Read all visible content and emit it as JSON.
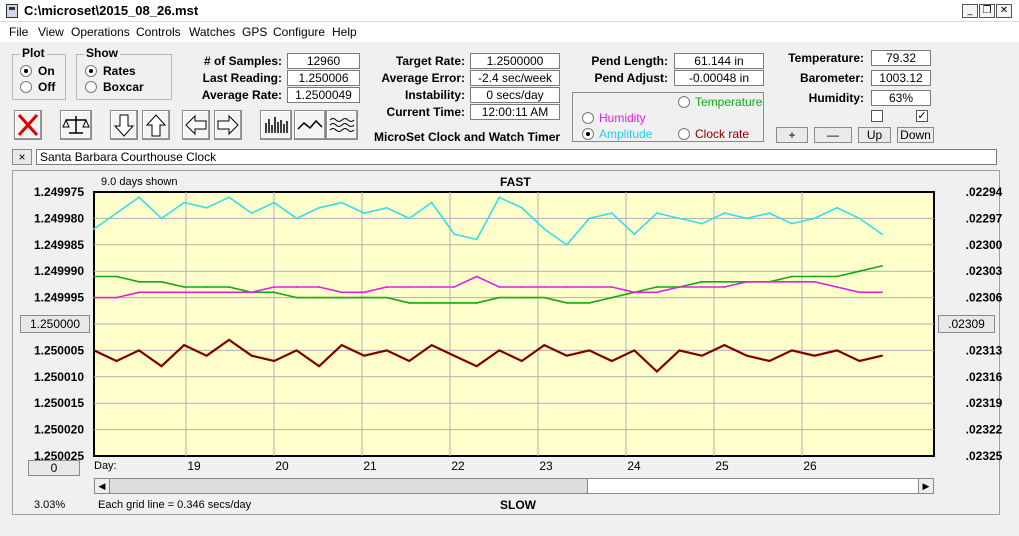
{
  "window": {
    "title": "C:\\microset\\2015_08_26.mst",
    "minimize": "_",
    "restore": "❐",
    "close": "✕"
  },
  "menu": [
    "File",
    "View",
    "Operations",
    "Controls",
    "Watches",
    "GPS",
    "Configure",
    "Help"
  ],
  "plot_group": {
    "title": "Plot",
    "on": "On",
    "off": "Off",
    "selected": "On"
  },
  "show_group": {
    "title": "Show",
    "rates": "Rates",
    "boxcar": "Boxcar",
    "selected": "Rates"
  },
  "stats": {
    "samples_label": "# of Samples:",
    "samples": "12960",
    "last_label": "Last Reading:",
    "last": "1.250006",
    "avg_rate_label": "Average Rate:",
    "avg_rate": "1.2500049",
    "target_label": "Target Rate:",
    "target": "1.2500000",
    "avg_err_label": "Average Error:",
    "avg_err": "-2.4 sec/week",
    "instab_label": "Instability:",
    "instab": "0 secs/day",
    "time_label": "Current Time:",
    "time": "12:00:11 AM",
    "app_caption": "MicroSet Clock and Watch Timer",
    "pend_len_label": "Pend Length:",
    "pend_len": "61.144 in",
    "pend_adj_label": "Pend Adjust:",
    "pend_adj": "-0.00048 in",
    "temp_label": "Temperature:",
    "temp": "79.32",
    "baro_label": "Barometer:",
    "baro": "1003.12",
    "hum_label": "Humidity:",
    "hum": "63%"
  },
  "trace_select": {
    "temperature": "Temperature",
    "humidity": "Humidity",
    "amplitude": "Amplitude",
    "clock_rate": "Clock rate",
    "selected": "Amplitude"
  },
  "scale_buttons": {
    "plus": "+",
    "minus": "—",
    "up": "Up",
    "down": "Down"
  },
  "checkboxes": {
    "left_checked": false,
    "right_checked": true
  },
  "watch": {
    "close": "×",
    "name": "Santa Barbara Courthouse Clock"
  },
  "chart_top_left": "9.0 days shown",
  "chart_fast": "FAST",
  "chart_slow": "SLOW",
  "chart_grid_info": "Each grid line = 0.346 secs/day",
  "chart_percent": "3.03%",
  "chart_left_button": "1.250000",
  "chart_right_button": ".02309",
  "chart_bottom_button": "0",
  "day_label": "Day:",
  "colors": {
    "plot_bg": "#ffffcc",
    "rate": "#800000",
    "amplitude": "#33ddee",
    "temperature": "#11aa11",
    "humidity": "#dd22dd",
    "grid": "#b0b0b0"
  },
  "chart_data": {
    "type": "line",
    "x_axis": {
      "label": "Day:",
      "ticks": [
        "19",
        "20",
        "21",
        "22",
        "23",
        "24",
        "25",
        "26"
      ]
    },
    "y_left_ticks": [
      "1.249975",
      "1.249980",
      "1.249985",
      "1.249990",
      "1.249995",
      "1.250000",
      "1.250005",
      "1.250010",
      "1.250015",
      "1.250020",
      "1.250025"
    ],
    "y_right_ticks": [
      ".02294",
      ".02297",
      ".02300",
      ".02303",
      ".02306",
      ".02309",
      ".02313",
      ".02316",
      ".02319",
      ".02322",
      ".02325"
    ],
    "ylim_left": [
      1.250025,
      1.249975
    ],
    "series": [
      {
        "name": "Clock rate",
        "values": [
          1.250005,
          1.250007,
          1.250005,
          1.250008,
          1.250004,
          1.250006,
          1.250003,
          1.250006,
          1.250007,
          1.250005,
          1.250008,
          1.250004,
          1.250006,
          1.250005,
          1.250007,
          1.250004,
          1.250006,
          1.250008,
          1.250005,
          1.250007,
          1.250004,
          1.250006,
          1.250005,
          1.250007,
          1.250005,
          1.250009,
          1.250005,
          1.250006,
          1.250004,
          1.250006,
          1.250007,
          1.250005,
          1.250006,
          1.250005,
          1.250007,
          1.250006
        ]
      },
      {
        "name": "Amplitude",
        "values": [
          1.249982,
          1.249979,
          1.249976,
          1.24998,
          1.249977,
          1.249978,
          1.249976,
          1.249979,
          1.249977,
          1.24998,
          1.249978,
          1.249977,
          1.249979,
          1.249978,
          1.24998,
          1.249977,
          1.249983,
          1.249984,
          1.249976,
          1.249978,
          1.249982,
          1.249985,
          1.24998,
          1.249979,
          1.249983,
          1.249979,
          1.24998,
          1.249981,
          1.249979,
          1.24998,
          1.249979,
          1.249981,
          1.24998,
          1.249978,
          1.24998,
          1.249983
        ]
      },
      {
        "name": "Temperature",
        "values": [
          1.249991,
          1.249991,
          1.249992,
          1.249992,
          1.249993,
          1.249993,
          1.249993,
          1.249994,
          1.249994,
          1.249995,
          1.249995,
          1.249995,
          1.249995,
          1.249995,
          1.249996,
          1.249996,
          1.249996,
          1.249996,
          1.249995,
          1.249995,
          1.249995,
          1.249996,
          1.249996,
          1.249995,
          1.249994,
          1.249993,
          1.249993,
          1.249992,
          1.249992,
          1.249992,
          1.249992,
          1.249991,
          1.249991,
          1.249991,
          1.24999,
          1.249989
        ]
      },
      {
        "name": "Humidity",
        "values": [
          1.249995,
          1.249995,
          1.249994,
          1.249994,
          1.249994,
          1.249994,
          1.249994,
          1.249994,
          1.249993,
          1.249993,
          1.249993,
          1.249994,
          1.249994,
          1.249993,
          1.249993,
          1.249993,
          1.249993,
          1.249991,
          1.249993,
          1.249993,
          1.249993,
          1.249993,
          1.249993,
          1.249993,
          1.249994,
          1.249994,
          1.249993,
          1.249993,
          1.249993,
          1.249992,
          1.249992,
          1.249992,
          1.249992,
          1.249993,
          1.249994,
          1.249994
        ]
      }
    ],
    "grid": true
  }
}
